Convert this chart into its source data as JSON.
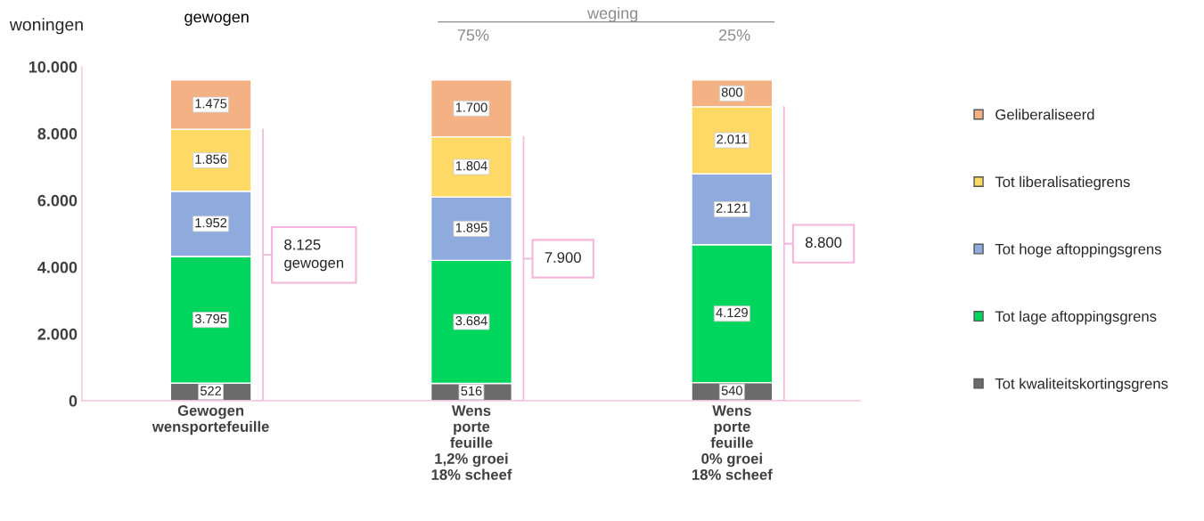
{
  "chart_data": {
    "type": "bar",
    "stacked": true,
    "ylabel": "woningen",
    "categories": [
      "Gewogen\nwensportefeuille",
      "Wens\nporte\nfeuille\n1,2% groei\n18% scheef",
      "Wens\nporte\nfeuille\n0% groei\n18% scheef"
    ],
    "series": [
      {
        "name": "Tot kwaliteitskortingsgrens",
        "color": "#6b6b6b",
        "values": [
          522,
          516,
          540
        ],
        "value_labels": [
          "522",
          "516",
          "540"
        ]
      },
      {
        "name": "Tot lage aftoppingsgrens",
        "color": "#00d65e",
        "values": [
          3795,
          3684,
          4129
        ],
        "value_labels": [
          "3.795",
          "3.684",
          "4.129"
        ]
      },
      {
        "name": "Tot hoge aftoppingsgrens",
        "color": "#8faadc",
        "values": [
          1952,
          1895,
          2121
        ],
        "value_labels": [
          "1.952",
          "1.895",
          "2.121"
        ]
      },
      {
        "name": "Tot liberalisatiegrens",
        "color": "#ffd966",
        "values": [
          1856,
          1804,
          2011
        ],
        "value_labels": [
          "1.856",
          "1.804",
          "2.011"
        ]
      },
      {
        "name": "Geliberaliseerd",
        "color": "#f4b183",
        "values": [
          1475,
          1700,
          800
        ],
        "value_labels": [
          "1.475",
          "1.700",
          "800"
        ]
      }
    ],
    "ylim": [
      0,
      10000
    ],
    "yticks": [
      0,
      {
        "value": 2000,
        "label": "2.000"
      },
      {
        "value": 4000,
        "label": "4.000"
      },
      {
        "value": 6000,
        "label": "6.000"
      },
      {
        "value": 8000,
        "label": "8.000"
      },
      {
        "value": 10000,
        "label": "10.000"
      }
    ],
    "grid": false,
    "legend": "right",
    "annotations": [
      "gewogen",
      "weging",
      "75%",
      "25%",
      "8.125\ngewogen",
      "7.900",
      "8.800"
    ]
  }
}
